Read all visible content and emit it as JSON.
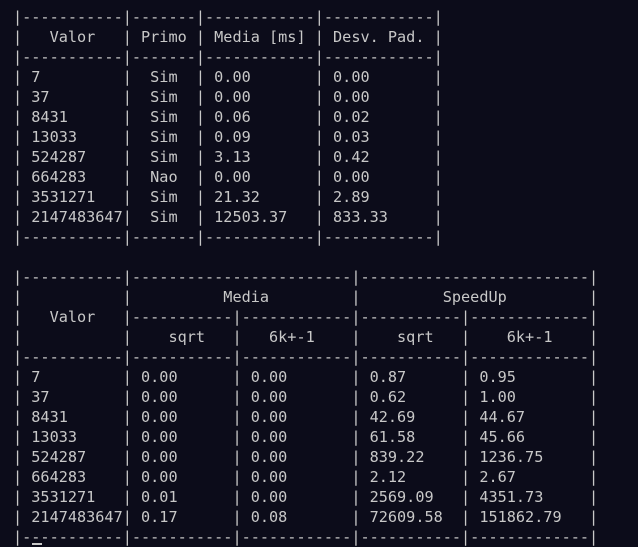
{
  "terminal": {
    "lines": [
      "|-----------|-------|------------|------------|",
      "|   Valor   | Primo | Media [ms] | Desv. Pad. |",
      "|-----------|-------|------------|------------|",
      "| 7         |  Sim  | 0.00       | 0.00       |",
      "| 37        |  Sim  | 0.00       | 0.00       |",
      "| 8431      |  Sim  | 0.06       | 0.02       |",
      "| 13033     |  Sim  | 0.09       | 0.03       |",
      "| 524287    |  Sim  | 3.13       | 0.42       |",
      "| 664283    |  Nao  | 0.00       | 0.00       |",
      "| 3531271   |  Sim  | 21.32      | 2.89       |",
      "| 2147483647|  Sim  | 12503.37   | 833.33     |",
      "|-----------|-------|------------|------------|",
      "",
      "|-----------|------------------------|-------------------------|",
      "|           |          Media         |         SpeedUp         |",
      "|   Valor   |-----------|------------|-----------|-------------|",
      "|           |    sqrt   |   6k+-1    |    sqrt   |    6k+-1    |",
      "|-----------|-----------|------------|-----------|-------------|",
      "| 7         | 0.00      | 0.00       | 0.87      | 0.95        |",
      "| 37        | 0.00      | 0.00       | 0.62      | 1.00        |",
      "| 8431      | 0.00      | 0.00       | 42.69     | 44.67       |",
      "| 13033     | 0.00      | 0.00       | 61.58     | 45.66       |",
      "| 524287    | 0.00      | 0.00       | 839.22    | 1236.75     |",
      "| 664283    | 0.00      | 0.00       | 2.12      | 2.67        |",
      "| 3531271   | 0.01      | 0.00       | 2569.09   | 4351.73     |",
      "| 2147483647| 0.17      | 0.08       | 72609.58  | 151862.79   |",
      "|-----------|-----------|------------|-----------|-------------|"
    ]
  },
  "colors": {
    "background": "#0c0c1a",
    "foreground": "#c8c8c8"
  }
}
